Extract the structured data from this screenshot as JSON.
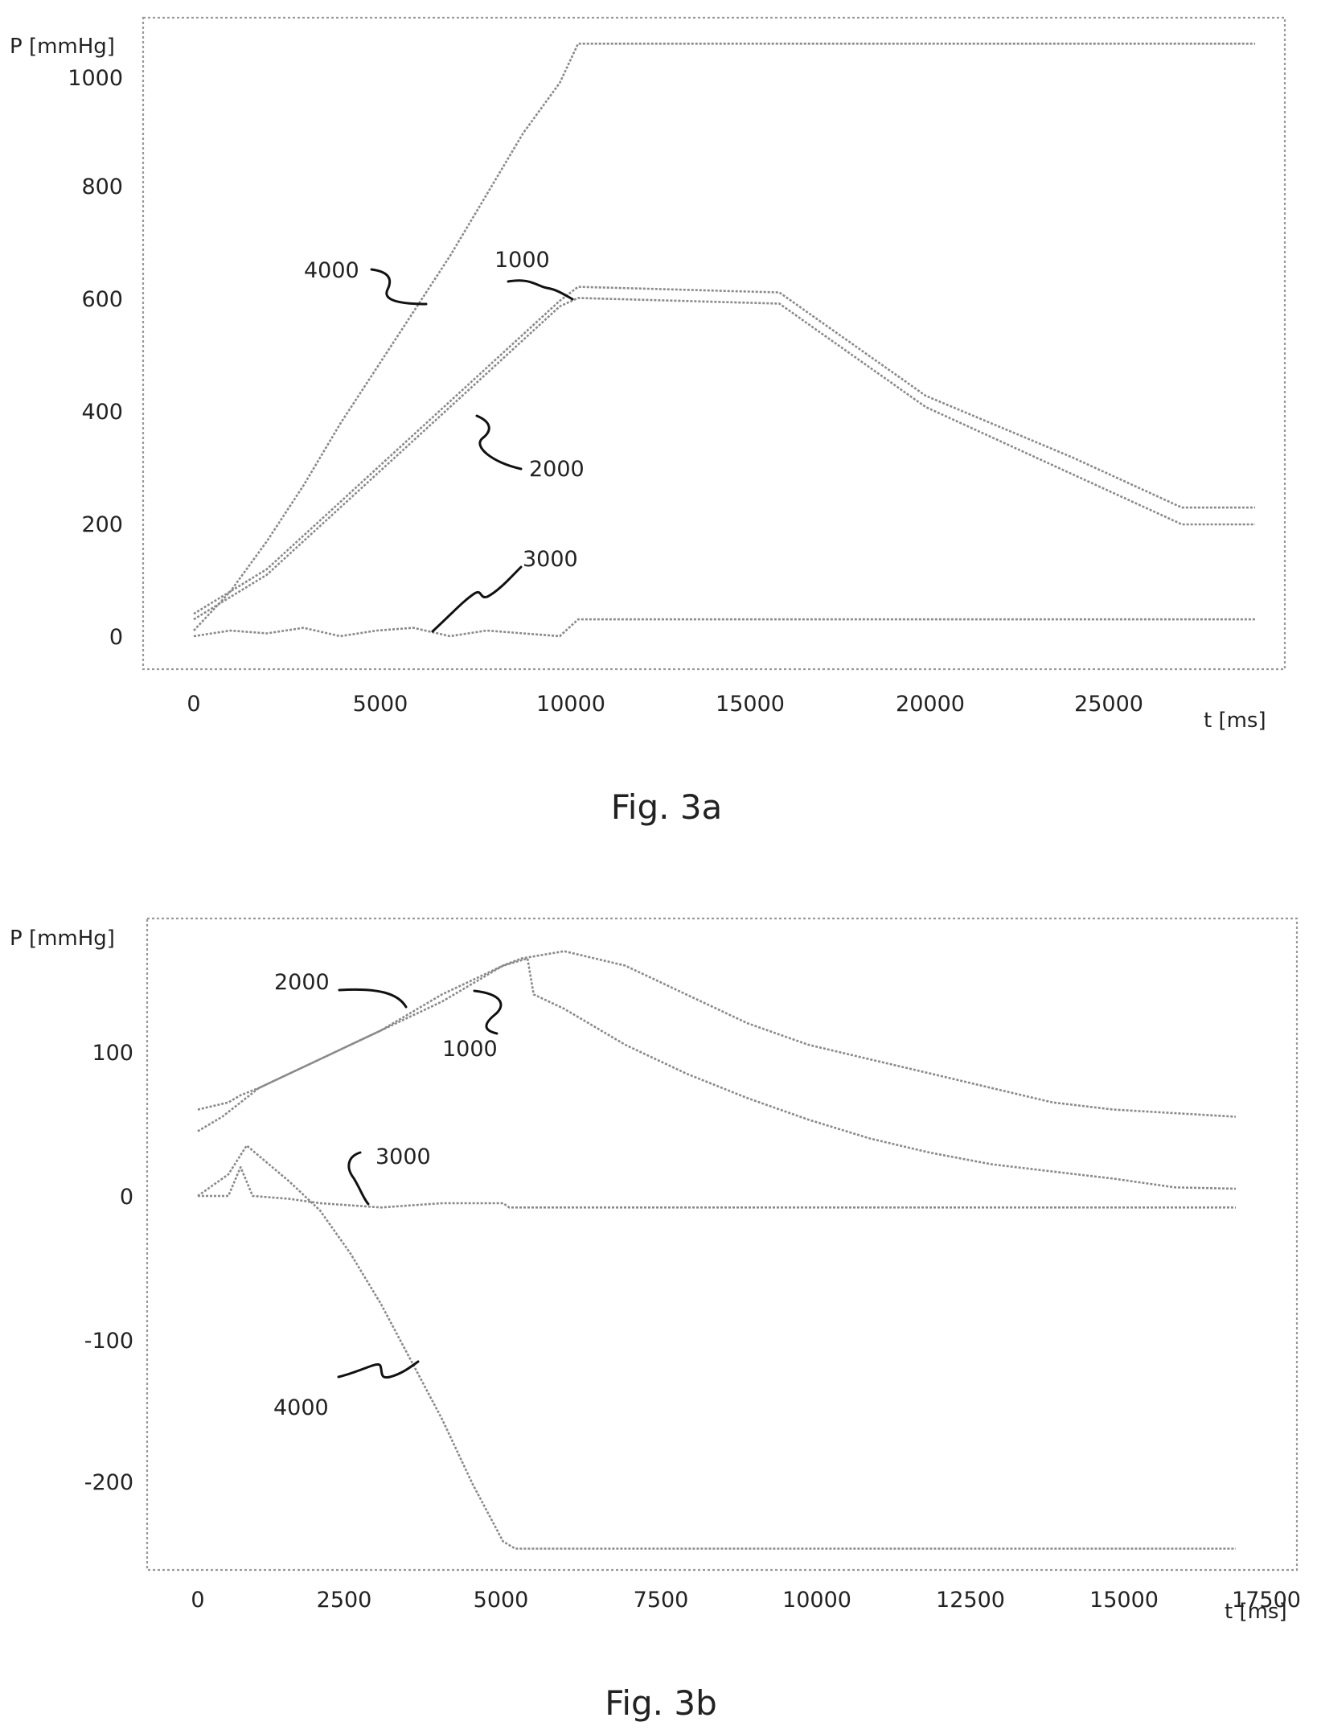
{
  "figures": [
    {
      "caption": "Fig. 3a",
      "ylabel": "P [mmHg]",
      "xlabel": "t [ms]",
      "xticks": [
        "0",
        "5000",
        "10000",
        "15000",
        "20000",
        "25000"
      ],
      "yticks": [
        "0",
        "200",
        "400",
        "600",
        "800",
        "1000"
      ],
      "callouts": [
        "4000",
        "1000",
        "2000",
        "3000"
      ]
    },
    {
      "caption": "Fig. 3b",
      "ylabel": "P [mmHg]",
      "xlabel": "t [ms]",
      "xticks": [
        "0",
        "2500",
        "5000",
        "7500",
        "10000",
        "12500",
        "15000",
        "17500"
      ],
      "yticks": [
        "100",
        "0",
        "-100",
        "-200"
      ],
      "callouts": [
        "2000",
        "1000",
        "3000",
        "4000"
      ]
    }
  ],
  "chart_data": [
    {
      "type": "line",
      "title": "",
      "xlabel": "t [ms]",
      "ylabel": "P [mmHg]",
      "xlim": [
        0,
        30000
      ],
      "ylim": [
        -60,
        1060
      ],
      "grid": false,
      "series": [
        {
          "name": "4000",
          "x": [
            0,
            1000,
            2000,
            3000,
            4000,
            5000,
            6000,
            7000,
            8000,
            9000,
            10000,
            10500,
            29000
          ],
          "y": [
            10,
            80,
            170,
            270,
            380,
            480,
            580,
            680,
            790,
            900,
            990,
            1060,
            1060
          ]
        },
        {
          "name": "1000",
          "x": [
            0,
            2000,
            4000,
            6000,
            8000,
            10000,
            10500,
            16000,
            20000,
            24000,
            27000,
            29000
          ],
          "y": [
            40,
            120,
            240,
            360,
            480,
            600,
            625,
            615,
            430,
            320,
            230,
            230
          ]
        },
        {
          "name": "2000",
          "x": [
            0,
            2000,
            4000,
            6000,
            8000,
            10000,
            10500,
            16000,
            20000,
            24000,
            27000,
            29000
          ],
          "y": [
            30,
            110,
            230,
            350,
            470,
            590,
            605,
            595,
            410,
            290,
            200,
            200
          ]
        },
        {
          "name": "3000",
          "x": [
            0,
            1000,
            2000,
            3000,
            4000,
            5000,
            6000,
            7000,
            8000,
            9000,
            10000,
            10500,
            29000
          ],
          "y": [
            0,
            10,
            5,
            15,
            0,
            10,
            15,
            0,
            10,
            5,
            0,
            30,
            30
          ]
        }
      ]
    },
    {
      "type": "line",
      "title": "",
      "xlabel": "t [ms]",
      "ylabel": "P [mmHg]",
      "xlim": [
        0,
        18000
      ],
      "ylim": [
        -260,
        190
      ],
      "grid": false,
      "series": [
        {
          "name": "2000",
          "x": [
            0,
            500,
            700,
            1000,
            2000,
            3000,
            4000,
            5000,
            5300,
            6000,
            7000,
            8000,
            9000,
            10000,
            11000,
            12000,
            13000,
            14000,
            15000,
            17000
          ],
          "y": [
            60,
            65,
            70,
            75,
            95,
            115,
            140,
            160,
            165,
            170,
            160,
            140,
            120,
            105,
            95,
            85,
            75,
            65,
            60,
            55
          ]
        },
        {
          "name": "1000",
          "x": [
            0,
            400,
            700,
            1000,
            2000,
            3000,
            4000,
            5000,
            5400,
            5500,
            6000,
            7000,
            8000,
            9000,
            10000,
            11000,
            12000,
            13000,
            14000,
            15000,
            16000,
            17000
          ],
          "y": [
            45,
            55,
            65,
            75,
            95,
            115,
            135,
            160,
            165,
            140,
            130,
            105,
            85,
            68,
            53,
            40,
            30,
            22,
            17,
            12,
            6,
            5
          ]
        },
        {
          "name": "3000",
          "x": [
            0,
            500,
            700,
            900,
            1500,
            2000,
            3000,
            4000,
            5000,
            5100,
            17000
          ],
          "y": [
            0,
            0,
            20,
            0,
            -2,
            -5,
            -8,
            -5,
            -5,
            -8,
            -8
          ]
        },
        {
          "name": "4000",
          "x": [
            0,
            500,
            800,
            1500,
            2000,
            2500,
            3000,
            3500,
            4000,
            4500,
            5000,
            5200,
            17000
          ],
          "y": [
            0,
            15,
            35,
            10,
            -10,
            -40,
            -75,
            -115,
            -155,
            -200,
            -240,
            -245,
            -245
          ]
        }
      ]
    }
  ]
}
